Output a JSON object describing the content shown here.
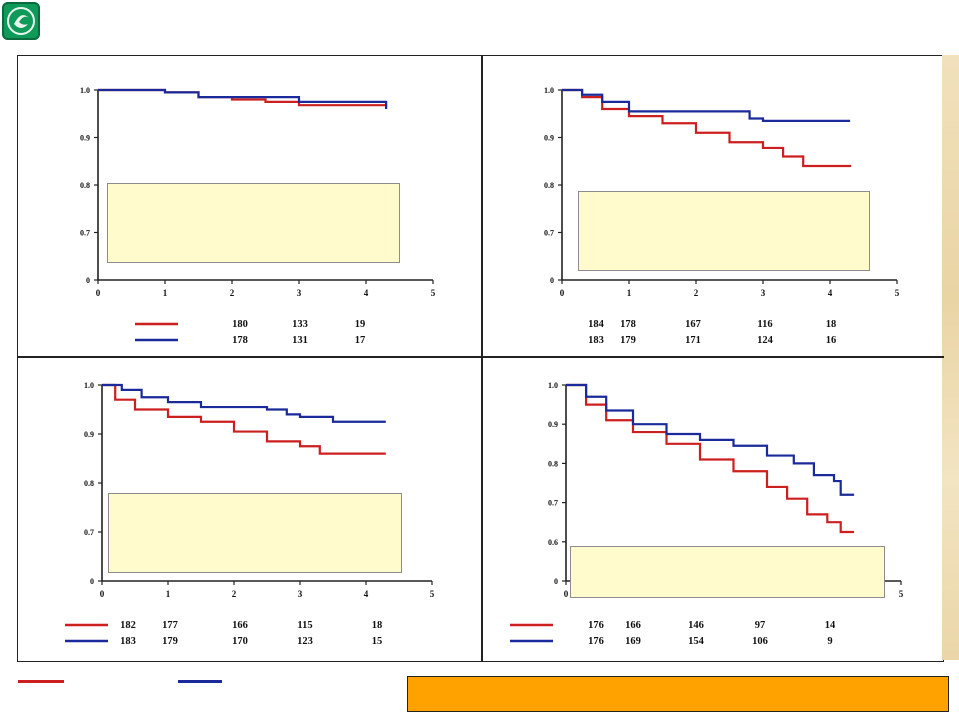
{
  "colors": {
    "red": "#cc1f1f",
    "blue": "#1a2a9a",
    "box_fill": "#fffbcc",
    "banner": "#ffa200"
  },
  "logo": {
    "icon": "logo-icon"
  },
  "chart_data": [
    {
      "type": "line",
      "x_ticks": [
        "0",
        "1",
        "2",
        "3",
        "4",
        "5"
      ],
      "y_ticks": [
        "0",
        "0.7",
        "0.8",
        "0.9",
        "1.0"
      ],
      "xlim": [
        0,
        5
      ],
      "ylim_labels": [
        0.6,
        1.0
      ],
      "series": [
        {
          "color": "red",
          "points": [
            [
              0,
              1.0
            ],
            [
              1,
              0.995
            ],
            [
              1.5,
              0.985
            ],
            [
              2,
              0.98
            ],
            [
              2.5,
              0.975
            ],
            [
              3,
              0.968
            ],
            [
              4.3,
              0.965
            ]
          ]
        },
        {
          "color": "blue",
          "points": [
            [
              0,
              1.0
            ],
            [
              1,
              0.995
            ],
            [
              1.5,
              0.985
            ],
            [
              2,
              0.985
            ],
            [
              2.5,
              0.985
            ],
            [
              3,
              0.975
            ],
            [
              3.5,
              0.975
            ],
            [
              4.3,
              0.96
            ]
          ]
        }
      ],
      "at_risk": [
        {
          "color": "red",
          "values": [
            "180",
            "133",
            "19"
          ]
        },
        {
          "color": "blue",
          "values": [
            "178",
            "131",
            "17"
          ]
        }
      ]
    },
    {
      "type": "line",
      "x_ticks": [
        "0",
        "1",
        "2",
        "3",
        "4",
        "5"
      ],
      "y_ticks": [
        "0",
        "0.7",
        "0.8",
        "0.9",
        "1.0"
      ],
      "xlim": [
        0,
        5
      ],
      "ylim_labels": [
        0.6,
        1.0
      ],
      "series": [
        {
          "color": "red",
          "points": [
            [
              0,
              1.0
            ],
            [
              0.3,
              0.985
            ],
            [
              0.6,
              0.96
            ],
            [
              1,
              0.945
            ],
            [
              1.5,
              0.93
            ],
            [
              2,
              0.91
            ],
            [
              2.5,
              0.89
            ],
            [
              3,
              0.878
            ],
            [
              3.3,
              0.86
            ],
            [
              3.6,
              0.84
            ],
            [
              4.3,
              0.838
            ]
          ]
        },
        {
          "color": "blue",
          "points": [
            [
              0,
              1.0
            ],
            [
              0.3,
              0.99
            ],
            [
              0.6,
              0.975
            ],
            [
              1,
              0.955
            ],
            [
              1.5,
              0.955
            ],
            [
              2,
              0.955
            ],
            [
              2.5,
              0.955
            ],
            [
              2.8,
              0.94
            ],
            [
              3,
              0.935
            ],
            [
              4.3,
              0.935
            ]
          ]
        }
      ],
      "at_risk": [
        {
          "color": "red",
          "values": [
            "184",
            "178",
            "167",
            "116",
            "18"
          ]
        },
        {
          "color": "blue",
          "values": [
            "183",
            "179",
            "171",
            "124",
            "16"
          ]
        }
      ]
    },
    {
      "type": "line",
      "x_ticks": [
        "0",
        "1",
        "2",
        "3",
        "4",
        "5"
      ],
      "y_ticks": [
        "0",
        "0.7",
        "0.8",
        "0.9",
        "1.0"
      ],
      "xlim": [
        0,
        5
      ],
      "ylim_labels": [
        0.6,
        1.0
      ],
      "series": [
        {
          "color": "red",
          "points": [
            [
              0,
              1.0
            ],
            [
              0.2,
              0.97
            ],
            [
              0.5,
              0.95
            ],
            [
              1,
              0.935
            ],
            [
              1.5,
              0.925
            ],
            [
              2,
              0.905
            ],
            [
              2.5,
              0.885
            ],
            [
              3,
              0.875
            ],
            [
              3.3,
              0.86
            ],
            [
              4.3,
              0.86
            ]
          ]
        },
        {
          "color": "blue",
          "points": [
            [
              0,
              1.0
            ],
            [
              0.3,
              0.99
            ],
            [
              0.6,
              0.975
            ],
            [
              1,
              0.965
            ],
            [
              1.5,
              0.955
            ],
            [
              2,
              0.955
            ],
            [
              2.5,
              0.95
            ],
            [
              2.8,
              0.94
            ],
            [
              3,
              0.935
            ],
            [
              3.5,
              0.925
            ],
            [
              4.3,
              0.925
            ]
          ]
        }
      ],
      "at_risk": [
        {
          "color": "red",
          "values": [
            "182",
            "177",
            "166",
            "115",
            "18"
          ]
        },
        {
          "color": "blue",
          "values": [
            "183",
            "179",
            "170",
            "123",
            "15"
          ]
        }
      ]
    },
    {
      "type": "line",
      "x_ticks": [
        "0",
        "1",
        "2",
        "3",
        "4",
        "5"
      ],
      "y_ticks": [
        "0",
        "0.6",
        "0.7",
        "0.8",
        "0.9",
        "1.0"
      ],
      "xlim": [
        0,
        5
      ],
      "ylim_labels": [
        0.5,
        1.0
      ],
      "series": [
        {
          "color": "red",
          "points": [
            [
              0,
              1.0
            ],
            [
              0.3,
              0.95
            ],
            [
              0.6,
              0.91
            ],
            [
              1,
              0.88
            ],
            [
              1.5,
              0.85
            ],
            [
              2,
              0.81
            ],
            [
              2.5,
              0.78
            ],
            [
              3,
              0.74
            ],
            [
              3.3,
              0.71
            ],
            [
              3.6,
              0.67
            ],
            [
              3.9,
              0.65
            ],
            [
              4.1,
              0.625
            ],
            [
              4.3,
              0.625
            ]
          ]
        },
        {
          "color": "blue",
          "points": [
            [
              0,
              1.0
            ],
            [
              0.3,
              0.97
            ],
            [
              0.6,
              0.935
            ],
            [
              1,
              0.9
            ],
            [
              1.5,
              0.875
            ],
            [
              2,
              0.86
            ],
            [
              2.5,
              0.845
            ],
            [
              3,
              0.82
            ],
            [
              3.4,
              0.8
            ],
            [
              3.7,
              0.77
            ],
            [
              4,
              0.755
            ],
            [
              4.1,
              0.72
            ],
            [
              4.3,
              0.72
            ]
          ]
        }
      ],
      "at_risk": [
        {
          "color": "red",
          "values": [
            "176",
            "166",
            "146",
            "97",
            "14"
          ]
        },
        {
          "color": "blue",
          "values": [
            "176",
            "169",
            "154",
            "106",
            "9"
          ]
        }
      ]
    }
  ]
}
